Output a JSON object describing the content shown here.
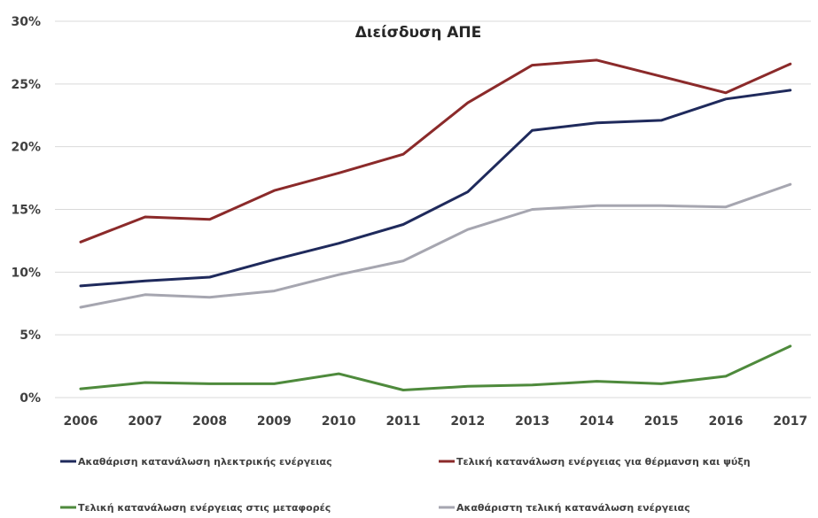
{
  "chart_data": {
    "type": "line",
    "title": "Διείσδυση ΑΠΕ",
    "xlabel": "",
    "ylabel": "",
    "x": [
      "2006",
      "2007",
      "2008",
      "2009",
      "2010",
      "2011",
      "2012",
      "2013",
      "2014",
      "2015",
      "2016",
      "2017"
    ],
    "ylim": [
      0,
      30
    ],
    "yticks": [
      0,
      5,
      10,
      15,
      20,
      25,
      30
    ],
    "ytick_labels": [
      "0%",
      "5%",
      "10%",
      "15%",
      "20%",
      "25%",
      "30%"
    ],
    "grid": true,
    "legend_position": "bottom",
    "series": [
      {
        "name": "Ακαθάριση κατανάλωση ηλεκτρικής ενέργειας",
        "color": "#1f2a5c",
        "values": [
          8.9,
          9.3,
          9.6,
          11.0,
          12.3,
          13.8,
          16.4,
          21.3,
          21.9,
          22.1,
          23.8,
          24.5
        ]
      },
      {
        "name": "Τελική κατανάλωση ενέργειας για θέρμανση και ψύξη",
        "color": "#8b2a2a",
        "values": [
          12.4,
          14.4,
          14.2,
          16.5,
          17.9,
          19.4,
          23.5,
          26.5,
          26.9,
          25.6,
          24.3,
          26.6
        ]
      },
      {
        "name": "Τελική κατανάλωση ενέργειας στις μεταφορές",
        "color": "#4e8a3c",
        "values": [
          0.7,
          1.2,
          1.1,
          1.1,
          1.9,
          0.6,
          0.9,
          1.0,
          1.3,
          1.1,
          1.7,
          4.1
        ]
      },
      {
        "name": "Ακαθάριστη τελική κατανάλωση ενέργειας",
        "color": "#a6a6b0",
        "values": [
          7.2,
          8.2,
          8.0,
          8.5,
          9.8,
          10.9,
          13.4,
          15.0,
          15.3,
          15.3,
          15.2,
          17.0
        ]
      }
    ]
  }
}
